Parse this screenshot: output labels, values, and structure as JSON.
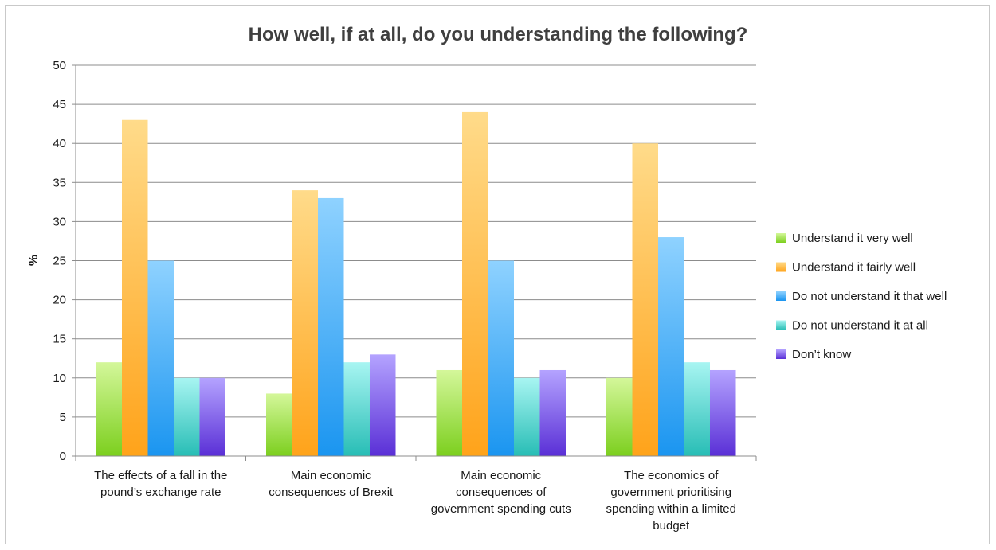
{
  "chart_data": {
    "type": "bar",
    "title": "How well, if at all, do you understanding the following?",
    "ylabel": "%",
    "xlabel": "",
    "ylim": [
      0,
      50
    ],
    "yticks": [
      0,
      5,
      10,
      15,
      20,
      25,
      30,
      35,
      40,
      45,
      50
    ],
    "grid": true,
    "legend_position": "right",
    "categories": [
      [
        "The effects of a fall in the",
        "pound’s exchange rate"
      ],
      [
        "Main economic",
        "consequences of Brexit"
      ],
      [
        "Main economic",
        "consequences of",
        "government spending cuts"
      ],
      [
        "The economics of",
        "government prioritising",
        "spending within a limited",
        "budget"
      ]
    ],
    "series": [
      {
        "name": "Understand it very well",
        "values": [
          12,
          8,
          11,
          10
        ],
        "color_top": "#d4f79a",
        "color_bottom": "#7ccf1e"
      },
      {
        "name": "Understand it fairly well",
        "values": [
          43,
          34,
          44,
          40
        ],
        "color_top": "#ffdb8a",
        "color_bottom": "#ffa31a"
      },
      {
        "name": "Do not understand it that well",
        "values": [
          25,
          33,
          25,
          28
        ],
        "color_top": "#8fd2ff",
        "color_bottom": "#1a95f0"
      },
      {
        "name": "Do not understand it at all",
        "values": [
          10,
          12,
          10,
          12
        ],
        "color_top": "#a8f5f2",
        "color_bottom": "#27bdb5"
      },
      {
        "name": "Don’t know",
        "values": [
          10,
          13,
          11,
          11
        ],
        "color_top": "#b4a3ff",
        "color_bottom": "#5a2fd6"
      }
    ]
  }
}
